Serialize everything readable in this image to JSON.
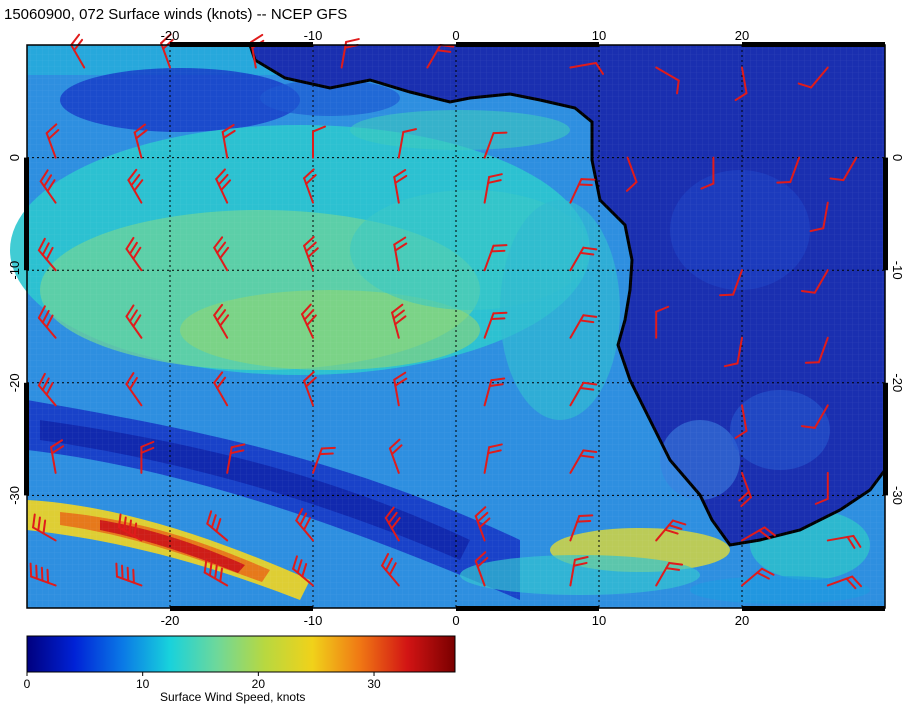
{
  "title": "15060900, 072 Surface winds (knots) -- NCEP GFS",
  "map": {
    "lon_range": [
      -30,
      30
    ],
    "lat_range": [
      -40,
      10
    ],
    "lon_ticks": [
      "-20",
      "-10",
      "0",
      "10",
      "20"
    ],
    "lat_ticks": [
      "0",
      "-10",
      "-20",
      "-30"
    ],
    "gridlines": true,
    "land_color": "#1a2fb0",
    "coast_color": "#000000",
    "barb_color": "#e01b1b"
  },
  "colorbar": {
    "label": "Surface Wind Speed, knots",
    "ticks": [
      "0",
      "10",
      "20",
      "30"
    ],
    "tick_values": [
      0,
      10,
      20,
      30
    ],
    "range": [
      0,
      37
    ],
    "colors": [
      "#00007f",
      "#0022d6",
      "#0a78e6",
      "#18d2dc",
      "#6ed89a",
      "#b8d840",
      "#f0d21a",
      "#f07814",
      "#d21414",
      "#7a0000"
    ]
  }
}
